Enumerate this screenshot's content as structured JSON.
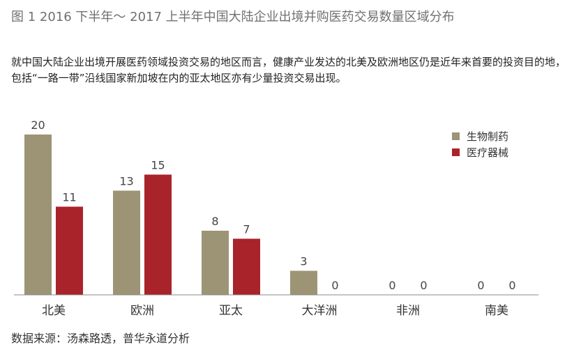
{
  "figure": {
    "title": "图 1  2016 下半年～ 2017 上半年中国大陆企业出境并购医药交易数量区域分布",
    "description": "就中国大陆企业出境开展医药领域投资交易的地区而言，健康产业发达的北美及欧洲地区仍是近年来首要的投资目的地，包括“一路一带”沿线国家新加坡在内的亚太地区亦有少量投资交易出现。",
    "source": "数据来源：汤森路透，普华永道分析"
  },
  "chart_data": {
    "type": "bar",
    "title": "",
    "xlabel": "",
    "ylabel": "",
    "categories": [
      "北美",
      "欧洲",
      "亚太",
      "大洋洲",
      "非洲",
      "南美"
    ],
    "series": [
      {
        "name": "生物制药",
        "values": [
          20,
          13,
          8,
          3,
          0,
          0
        ],
        "color": "#9c9474"
      },
      {
        "name": "医疗器械",
        "values": [
          11,
          15,
          7,
          0,
          0,
          0
        ],
        "color": "#a8232a"
      }
    ],
    "ylim": [
      0,
      20
    ],
    "grid": false,
    "legend_position": "top-right",
    "data_labels": true
  }
}
